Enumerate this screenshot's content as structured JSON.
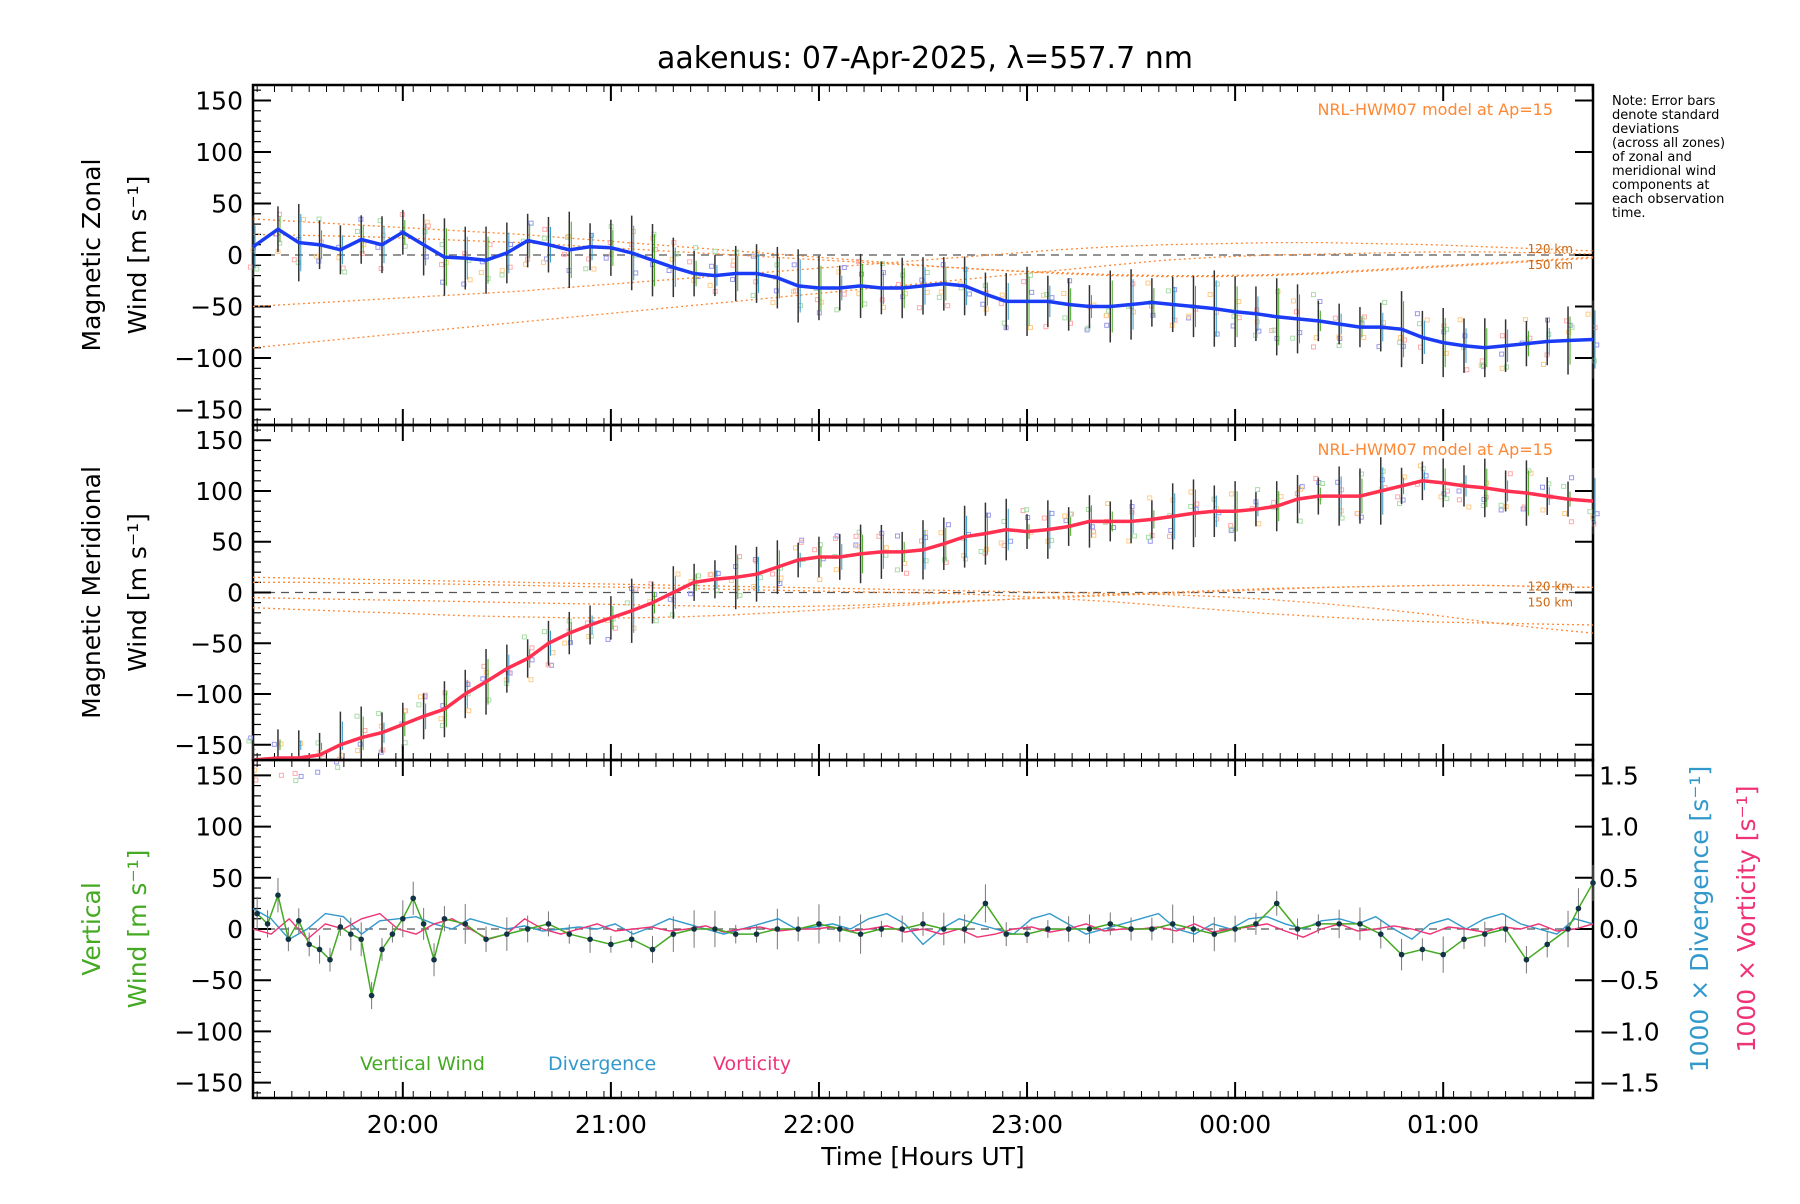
{
  "note_lines": [
    "Note: Error bars",
    "denote standard",
    "deviations",
    "(across all zones)",
    "of zonal and",
    "meridional wind",
    "components at",
    "each observation",
    "time."
  ],
  "chart_data": {
    "type": "line",
    "title": "aakenus: 07-Apr-2025, λ=557.7 nm",
    "xlabel": "Time [Hours UT]",
    "xlim": [
      19.28,
      25.72
    ],
    "x_ticks": [
      20,
      21,
      22,
      23,
      24,
      25
    ],
    "x_tick_labels": [
      "20:00",
      "21:00",
      "22:00",
      "23:00",
      "00:00",
      "01:00"
    ],
    "panels": [
      {
        "id": "zonal",
        "ylabel_line1": "Magnetic Zonal",
        "ylabel_line2": "Wind [m s⁻¹]",
        "ylim": [
          -165,
          165
        ],
        "y_ticks": [
          150,
          100,
          50,
          0,
          -50,
          -100,
          -150
        ],
        "y_tick_labels": [
          "150",
          "100",
          "50",
          "0",
          "−50",
          "−100",
          "−150"
        ],
        "model_label": "NRL-HWM07 model at Ap=15",
        "model_alt_labels": [
          "120 km",
          "150 km"
        ],
        "series_color": "#1a3cf5",
        "error_sd": 32,
        "x": [
          19.28,
          19.4,
          19.5,
          19.6,
          19.7,
          19.8,
          19.9,
          20.0,
          20.1,
          20.2,
          20.3,
          20.4,
          20.5,
          20.6,
          20.7,
          20.8,
          20.9,
          21.0,
          21.1,
          21.2,
          21.3,
          21.4,
          21.5,
          21.6,
          21.7,
          21.8,
          21.9,
          22.0,
          22.1,
          22.2,
          22.3,
          22.4,
          22.5,
          22.6,
          22.7,
          22.8,
          22.9,
          23.0,
          23.1,
          23.2,
          23.3,
          23.4,
          23.5,
          23.6,
          23.7,
          23.8,
          23.9,
          24.0,
          24.1,
          24.2,
          24.3,
          24.4,
          24.5,
          24.6,
          24.7,
          24.8,
          24.9,
          25.0,
          25.1,
          25.2,
          25.3,
          25.4,
          25.5,
          25.6,
          25.72
        ],
        "values": [
          8,
          25,
          12,
          10,
          5,
          15,
          10,
          22,
          10,
          -2,
          -3,
          -5,
          2,
          14,
          10,
          5,
          8,
          7,
          2,
          -5,
          -12,
          -18,
          -20,
          -18,
          -18,
          -22,
          -30,
          -32,
          -32,
          -30,
          -32,
          -32,
          -30,
          -28,
          -30,
          -38,
          -45,
          -45,
          -45,
          -48,
          -50,
          -50,
          -48,
          -46,
          -48,
          -50,
          -52,
          -55,
          -57,
          -60,
          -62,
          -64,
          -67,
          -70,
          -70,
          -72,
          -80,
          -85,
          -88,
          -90,
          -88,
          -86,
          -84,
          -83,
          -82
        ],
        "model_120": [
          -90,
          -85,
          -80,
          -75,
          -70,
          -65,
          -60,
          -55,
          -50,
          -45,
          -40,
          -35,
          -30,
          -25,
          -20,
          -15,
          -10,
          -5,
          -2,
          0,
          1,
          2,
          3,
          3,
          2,
          1
        ],
        "model_150": [
          20,
          19,
          18,
          16,
          14,
          12,
          9,
          6,
          3,
          0,
          -3,
          -6,
          -9,
          -12,
          -15,
          -17,
          -19,
          -20,
          -20,
          -19,
          -17,
          -14,
          -11,
          -8,
          -5,
          -2
        ],
        "model_120b": [
          -50,
          -47,
          -44,
          -41,
          -38,
          -35,
          -31,
          -27,
          -23,
          -19,
          -15,
          -11,
          -7,
          -3,
          1,
          5,
          8,
          10,
          11,
          12,
          12,
          11,
          10,
          8,
          6,
          4
        ],
        "model_150b": [
          35,
          32,
          29,
          26,
          23,
          20,
          16,
          12,
          8,
          4,
          0,
          -4,
          -8,
          -12,
          -15,
          -18,
          -20,
          -21,
          -21,
          -20,
          -18,
          -15,
          -12,
          -9,
          -6,
          -3
        ]
      },
      {
        "id": "meridional",
        "ylabel_line1": "Magnetic Meridional",
        "ylabel_line2": "Wind [m s⁻¹]",
        "ylim": [
          -165,
          165
        ],
        "y_ticks": [
          150,
          100,
          50,
          0,
          -50,
          -100,
          -150
        ],
        "y_tick_labels": [
          "150",
          "100",
          "50",
          "0",
          "−50",
          "−100",
          "−150"
        ],
        "model_label": "NRL-HWM07 model at Ap=15",
        "model_alt_labels": [
          "120 km",
          "150 km"
        ],
        "series_color": "#ff3050",
        "error_sd": 28,
        "x": [
          19.28,
          19.4,
          19.5,
          19.6,
          19.7,
          19.8,
          19.9,
          20.0,
          20.1,
          20.2,
          20.3,
          20.4,
          20.5,
          20.6,
          20.7,
          20.8,
          20.9,
          21.0,
          21.1,
          21.2,
          21.3,
          21.4,
          21.5,
          21.6,
          21.7,
          21.8,
          21.9,
          22.0,
          22.1,
          22.2,
          22.3,
          22.4,
          22.5,
          22.6,
          22.7,
          22.8,
          22.9,
          23.0,
          23.1,
          23.2,
          23.3,
          23.4,
          23.5,
          23.6,
          23.7,
          23.8,
          23.9,
          24.0,
          24.1,
          24.2,
          24.3,
          24.4,
          24.5,
          24.6,
          24.7,
          24.8,
          24.9,
          25.0,
          25.1,
          25.2,
          25.3,
          25.4,
          25.5,
          25.6,
          25.72
        ],
        "values": [
          -165,
          -163,
          -163,
          -160,
          -150,
          -143,
          -138,
          -130,
          -122,
          -115,
          -100,
          -88,
          -75,
          -65,
          -50,
          -40,
          -32,
          -25,
          -18,
          -10,
          0,
          10,
          13,
          15,
          18,
          25,
          32,
          35,
          35,
          38,
          40,
          40,
          42,
          48,
          55,
          58,
          62,
          60,
          62,
          65,
          70,
          70,
          70,
          72,
          75,
          78,
          80,
          80,
          82,
          85,
          92,
          95,
          95,
          95,
          100,
          105,
          110,
          108,
          105,
          103,
          100,
          98,
          95,
          92,
          90
        ],
        "model_120": [
          15,
          14,
          13,
          12,
          11,
          10,
          9,
          8,
          7,
          6,
          5,
          4,
          3,
          2,
          1,
          0,
          -1,
          -2,
          -4,
          -7,
          -11,
          -16,
          -22,
          -29,
          -35,
          -40
        ],
        "model_150": [
          -15,
          -17,
          -19,
          -21,
          -23,
          -24,
          -25,
          -25,
          -24,
          -22,
          -19,
          -16,
          -13,
          -10,
          -7,
          -4,
          -2,
          0,
          2,
          4,
          5,
          6,
          7,
          7,
          6,
          5
        ],
        "model_120b": [
          10,
          10,
          9,
          9,
          8,
          7,
          6,
          5,
          4,
          3,
          2,
          1,
          0,
          -1,
          -3,
          -6,
          -9,
          -13,
          -17,
          -21,
          -24,
          -27,
          -29,
          -30,
          -31,
          -32
        ],
        "model_150b": [
          -5,
          -6,
          -7,
          -8,
          -9,
          -10,
          -11,
          -12,
          -13,
          -14,
          -14,
          -13,
          -11,
          -9,
          -7,
          -5,
          -3,
          -1,
          1,
          3,
          5,
          6,
          7,
          7,
          6,
          5
        ]
      },
      {
        "id": "vertical",
        "ylabel_line1": "Vertical",
        "ylabel_line2": "Wind [m s⁻¹]",
        "ylabel_color": "#44aa22",
        "ylim": [
          -165,
          165
        ],
        "y_ticks": [
          150,
          100,
          50,
          0,
          -50,
          -100,
          -150
        ],
        "y_tick_labels": [
          "150",
          "100",
          "50",
          "0",
          "−50",
          "−100",
          "−150"
        ],
        "right_ylim": [
          -1.65,
          1.65
        ],
        "right_ticks": [
          1.5,
          1.0,
          0.5,
          0.0,
          -0.5,
          -1.0,
          -1.5
        ],
        "right_tick_labels": [
          "1.5",
          "1.0",
          "0.5",
          "0.0",
          "−0.5",
          "−1.0",
          "−1.5"
        ],
        "right_label_div": "1000 × Divergence [s⁻¹]",
        "right_label_vort": "1000 × Vorticity [s⁻¹]",
        "legend": [
          {
            "label": "Vertical Wind",
            "color": "#44aa22"
          },
          {
            "label": "Divergence",
            "color": "#3399cc"
          },
          {
            "label": "Vorticity",
            "color": "#ee3377"
          }
        ],
        "vertical_x": [
          19.3,
          19.35,
          19.4,
          19.45,
          19.5,
          19.55,
          19.6,
          19.65,
          19.7,
          19.75,
          19.8,
          19.85,
          19.9,
          19.95,
          20.0,
          20.05,
          20.1,
          20.15,
          20.2,
          20.3,
          20.4,
          20.5,
          20.6,
          20.7,
          20.8,
          20.9,
          21.0,
          21.1,
          21.2,
          21.3,
          21.4,
          21.5,
          21.6,
          21.7,
          21.8,
          21.9,
          22.0,
          22.1,
          22.2,
          22.3,
          22.4,
          22.5,
          22.6,
          22.7,
          22.8,
          22.9,
          23.0,
          23.1,
          23.2,
          23.3,
          23.4,
          23.5,
          23.6,
          23.7,
          23.8,
          23.9,
          24.0,
          24.1,
          24.2,
          24.3,
          24.4,
          24.5,
          24.6,
          24.7,
          24.8,
          24.9,
          25.0,
          25.1,
          25.2,
          25.3,
          25.4,
          25.5,
          25.6,
          25.65,
          25.72
        ],
        "vertical_values": [
          15,
          5,
          33,
          -10,
          8,
          -15,
          -20,
          -30,
          2,
          -5,
          -10,
          -65,
          -20,
          -5,
          10,
          30,
          5,
          -30,
          10,
          5,
          -10,
          -5,
          0,
          5,
          -5,
          -10,
          -15,
          -10,
          -20,
          -5,
          0,
          0,
          -5,
          -5,
          0,
          0,
          5,
          0,
          -5,
          0,
          0,
          5,
          0,
          0,
          25,
          -5,
          -5,
          0,
          0,
          0,
          5,
          0,
          0,
          5,
          0,
          -5,
          0,
          5,
          25,
          0,
          5,
          5,
          5,
          -5,
          -25,
          -20,
          -25,
          -10,
          -5,
          0,
          -30,
          -15,
          0,
          20,
          45
        ],
        "divergence": [
          0.2,
          0.1,
          -0.1,
          0.0,
          0.15,
          0.12,
          -0.05,
          0.08,
          0.1,
          0.12,
          0.05,
          0.0,
          0.1,
          0.05,
          0.0,
          0.03,
          -0.02,
          0.0,
          0.02,
          0.0,
          0.05,
          -0.05,
          0.02,
          0.1,
          0.05,
          0.0,
          -0.05,
          0.0,
          0.05,
          0.1,
          0.0,
          0.02,
          0.05,
          0.0,
          0.1,
          0.15,
          0.05,
          -0.15,
          0.0,
          0.1,
          0.05,
          0.0,
          -0.05,
          0.1,
          0.15,
          0.05,
          -0.05,
          0.0,
          0.05,
          0.1,
          0.15,
          0.0,
          -0.05,
          0.05,
          0.0,
          0.1,
          0.12,
          0.05,
          0.0,
          0.08,
          0.1,
          0.05,
          0.12,
          0.0,
          -0.1,
          0.05,
          0.1,
          0.0,
          0.1,
          0.15,
          0.05,
          0.0,
          -0.05,
          0.1,
          0.05
        ],
        "vorticity": [
          0.0,
          -0.05,
          0.1,
          -0.1,
          0.05,
          0.0,
          0.1,
          0.15,
          0.0,
          -0.05,
          0.05,
          0.1,
          0.0,
          -0.1,
          -0.05,
          0.1,
          0.0,
          -0.05,
          0.0,
          0.05,
          -0.02,
          0.0,
          0.02,
          -0.02,
          0.0,
          0.03,
          -0.03,
          0.0,
          0.02,
          -0.02,
          0.0,
          0.0,
          0.02,
          -0.02,
          0.0,
          0.03,
          -0.03,
          0.0,
          -0.05,
          0.0,
          -0.08,
          -0.05,
          0.0,
          0.02,
          -0.03,
          0.0,
          0.05,
          -0.02,
          0.0,
          0.0,
          0.02,
          -0.02,
          0.05,
          -0.03,
          0.0,
          0.02,
          0.05,
          -0.02,
          -0.08,
          0.0,
          0.05,
          -0.02,
          0.0,
          0.03,
          0.0,
          -0.05,
          0.02,
          0.0,
          -0.03,
          0.02,
          0.0,
          0.05,
          -0.02,
          0.0,
          0.05
        ]
      }
    ]
  }
}
